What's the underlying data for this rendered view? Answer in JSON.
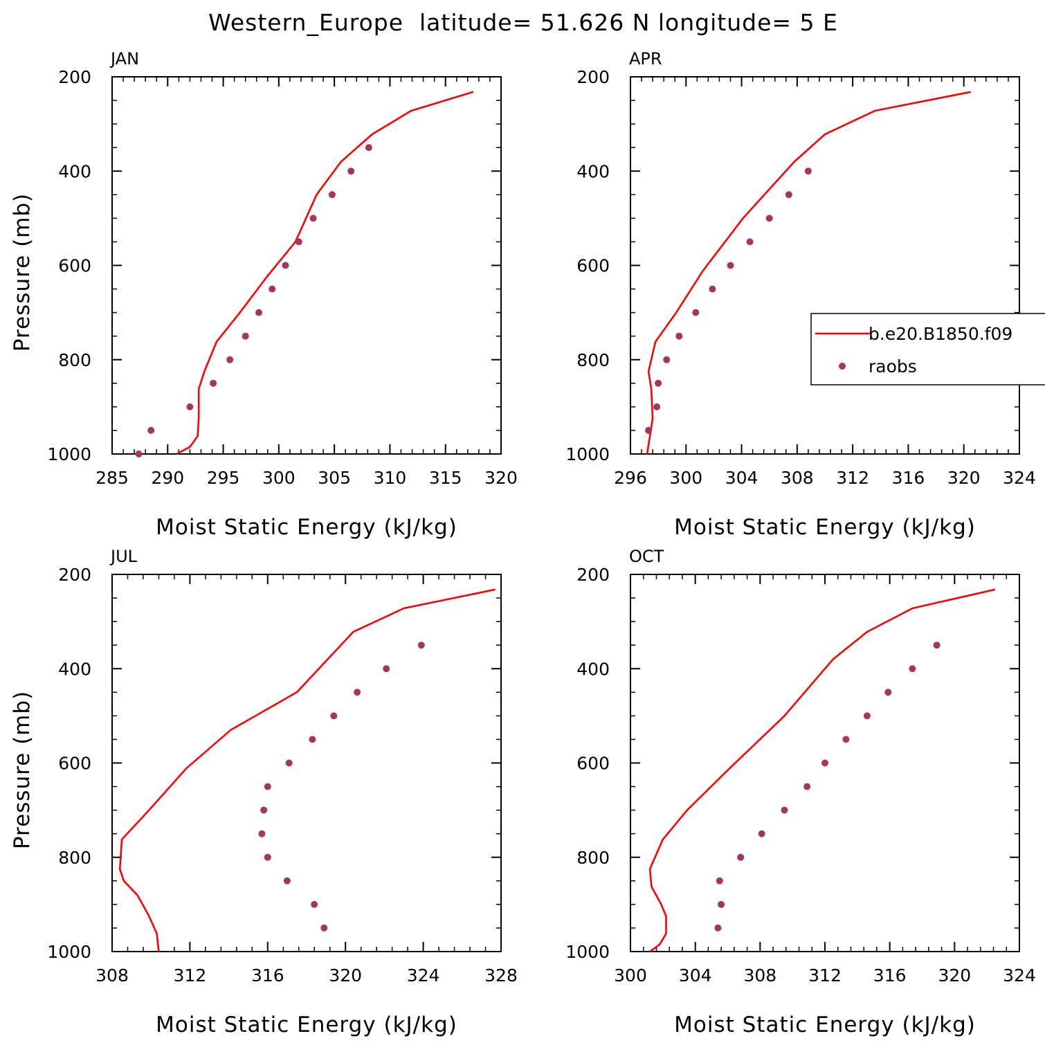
{
  "figure": {
    "title": "Western_Europe  latitude= 51.626 N longitude= 5 E"
  },
  "colors": {
    "model": "#ff0000",
    "obs": "#a83262"
  },
  "legend": {
    "placement": "right-middle of APR panel",
    "items": [
      {
        "label": "b.e20.B1850.f09",
        "type": "line"
      },
      {
        "label": "raobs",
        "type": "marker"
      }
    ]
  },
  "chart_data": [
    {
      "type": "line",
      "panel": "JAN",
      "title": "JAN",
      "xlabel": "Moist Static Energy (kJ/kg)",
      "ylabel": "Pressure (mb)",
      "xlim": [
        285,
        320
      ],
      "ylim": [
        1000,
        200
      ],
      "xticks": [
        285,
        290,
        295,
        300,
        305,
        310,
        315,
        320
      ],
      "yticks": [
        200,
        400,
        600,
        800,
        1000
      ],
      "series": [
        {
          "name": "b.e20.B1850.f09",
          "kind": "line",
          "x": [
            290.8,
            292,
            292.7,
            292.8,
            292.8,
            293.3,
            294.4,
            296.5,
            298.9,
            301.5,
            303.4,
            305.6,
            308.4,
            311.9,
            317.5
          ],
          "y": [
            1000,
            985,
            962,
            925,
            862,
            825,
            762,
            700,
            625,
            550,
            450,
            380,
            322,
            272,
            232
          ]
        },
        {
          "name": "raobs",
          "kind": "scatter",
          "x": [
            287.4,
            288.5,
            292.0,
            294.1,
            295.6,
            297.0,
            298.2,
            299.4,
            300.6,
            301.8,
            303.1,
            304.8,
            306.5,
            308.1
          ],
          "y": [
            1000,
            950,
            900,
            850,
            800,
            750,
            700,
            650,
            600,
            550,
            500,
            450,
            400,
            350
          ]
        }
      ]
    },
    {
      "type": "line",
      "panel": "APR",
      "title": "APR",
      "xlabel": "Moist Static Energy (kJ/kg)",
      "ylabel": "",
      "xlim": [
        296,
        324
      ],
      "ylim": [
        1000,
        200
      ],
      "xticks": [
        296,
        300,
        304,
        308,
        312,
        316,
        320,
        324
      ],
      "yticks": [
        200,
        400,
        600,
        800,
        1000
      ],
      "series": [
        {
          "name": "b.e20.B1850.f09",
          "kind": "line",
          "x": [
            297.2,
            297.4,
            297.6,
            297.5,
            297.3,
            297.8,
            299.3,
            301.2,
            304.1,
            307.8,
            310.0,
            313.6,
            320.5
          ],
          "y": [
            1000,
            962,
            925,
            862,
            825,
            762,
            700,
            612,
            500,
            380,
            322,
            272,
            232
          ]
        },
        {
          "name": "raobs",
          "kind": "scatter",
          "x": [
            297.3,
            297.9,
            298.0,
            298.6,
            299.5,
            300.7,
            301.9,
            303.2,
            304.6,
            306.0,
            307.4,
            308.8
          ],
          "y": [
            950,
            900,
            850,
            800,
            750,
            700,
            650,
            600,
            550,
            500,
            450,
            400
          ]
        }
      ]
    },
    {
      "type": "line",
      "panel": "JUL",
      "title": "JUL",
      "xlabel": "Moist Static Energy (kJ/kg)",
      "ylabel": "Pressure (mb)",
      "xlim": [
        308,
        328
      ],
      "ylim": [
        1000,
        200
      ],
      "xticks": [
        308,
        312,
        316,
        320,
        324,
        328
      ],
      "yticks": [
        200,
        400,
        600,
        800,
        1000
      ],
      "series": [
        {
          "name": "b.e20.B1850.f09",
          "kind": "line",
          "x": [
            310.4,
            310.3,
            309.9,
            309.3,
            308.6,
            308.4,
            308.5,
            309.9,
            311.8,
            314.1,
            317.5,
            320.4,
            323.0,
            327.7
          ],
          "y": [
            1000,
            962,
            925,
            880,
            850,
            825,
            762,
            700,
            612,
            530,
            450,
            322,
            272,
            232
          ]
        },
        {
          "name": "raobs",
          "kind": "scatter",
          "x": [
            318.9,
            318.4,
            317.0,
            316.0,
            315.7,
            315.8,
            316.0,
            317.1,
            318.3,
            319.4,
            320.6,
            322.1,
            323.9
          ],
          "y": [
            950,
            900,
            850,
            800,
            750,
            700,
            650,
            600,
            550,
            500,
            450,
            400,
            350
          ]
        }
      ]
    },
    {
      "type": "line",
      "panel": "OCT",
      "title": "OCT",
      "xlabel": "Moist Static Energy (kJ/kg)",
      "ylabel": "",
      "xlim": [
        300,
        324
      ],
      "ylim": [
        1000,
        200
      ],
      "xticks": [
        300,
        304,
        308,
        312,
        316,
        320,
        324
      ],
      "yticks": [
        200,
        400,
        600,
        800,
        1000
      ],
      "series": [
        {
          "name": "b.e20.B1850.f09",
          "kind": "line",
          "x": [
            301.2,
            301.8,
            302.2,
            302.2,
            301.9,
            301.3,
            301.2,
            302.0,
            303.5,
            306.1,
            309.5,
            312.5,
            314.6,
            317.4,
            322.5
          ],
          "y": [
            1000,
            985,
            962,
            925,
            900,
            862,
            825,
            762,
            700,
            612,
            500,
            380,
            322,
            272,
            232
          ]
        },
        {
          "name": "raobs",
          "kind": "scatter",
          "x": [
            305.4,
            305.6,
            305.5,
            306.8,
            308.1,
            309.5,
            310.9,
            312.0,
            313.3,
            314.6,
            315.9,
            317.4,
            318.9
          ],
          "y": [
            950,
            900,
            850,
            800,
            750,
            700,
            650,
            600,
            550,
            500,
            450,
            400,
            350
          ]
        }
      ]
    }
  ]
}
